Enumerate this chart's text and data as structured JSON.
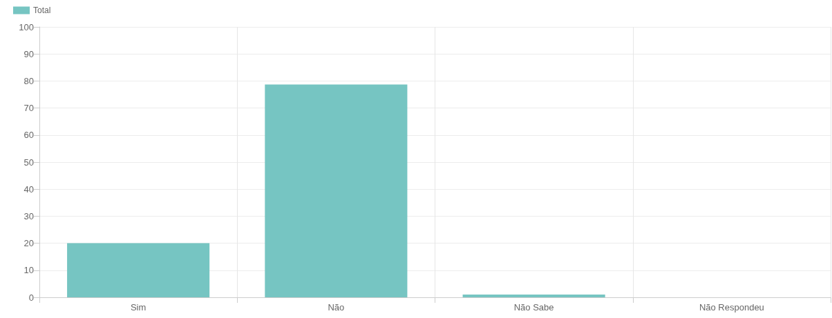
{
  "chart_data": {
    "type": "bar",
    "categories": [
      "Sim",
      "Não",
      "Não Sabe",
      "Não Respondeu"
    ],
    "series": [
      {
        "name": "Total",
        "color": "#76c5c2",
        "values": [
          20,
          78.7,
          1,
          0
        ]
      }
    ],
    "ylim": [
      0,
      100
    ],
    "yticks": [
      0,
      10,
      20,
      30,
      40,
      50,
      60,
      70,
      80,
      90,
      100
    ],
    "grid": true,
    "legend": "top left"
  }
}
